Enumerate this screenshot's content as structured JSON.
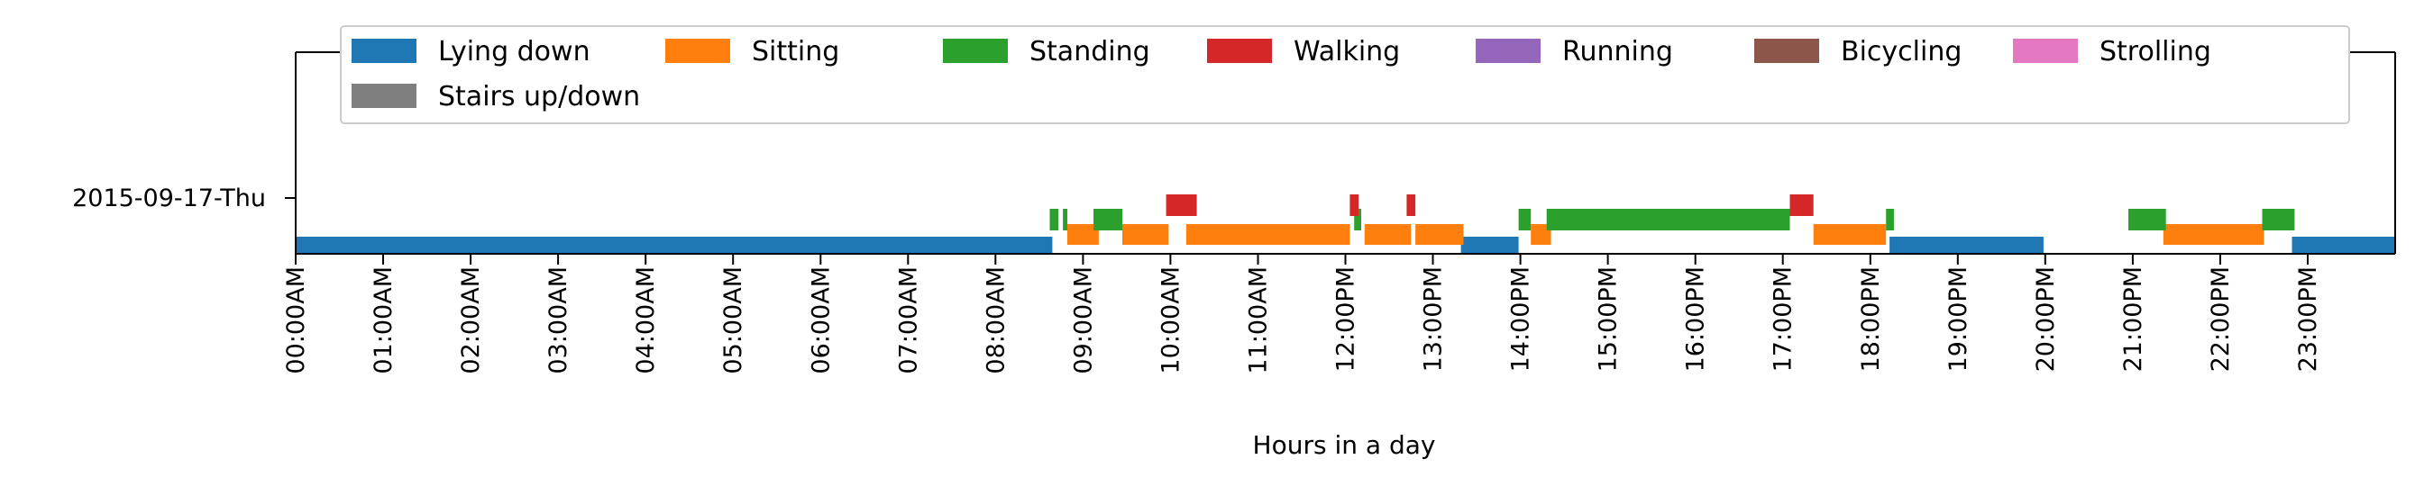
{
  "chart_data": {
    "type": "timeline",
    "xlabel": "Hours in a day",
    "xlim": [
      0,
      24
    ],
    "tick_labels": [
      "00:00AM",
      "01:00AM",
      "02:00AM",
      "03:00AM",
      "04:00AM",
      "05:00AM",
      "06:00AM",
      "07:00AM",
      "08:00AM",
      "09:00AM",
      "10:00AM",
      "11:00AM",
      "12:00PM",
      "13:00PM",
      "14:00PM",
      "15:00PM",
      "16:00PM",
      "17:00PM",
      "18:00PM",
      "19:00PM",
      "20:00PM",
      "21:00PM",
      "22:00PM",
      "23:00PM"
    ],
    "rows": [
      "2015-09-17-Thu"
    ],
    "legend_position": "top-center",
    "series": [
      {
        "name": "Lying down",
        "color": "#1f77b4",
        "intervals": [
          [
            0.0,
            8.65
          ],
          [
            13.32,
            13.98
          ],
          [
            18.22,
            19.98
          ],
          [
            22.82,
            24.0
          ]
        ]
      },
      {
        "name": "Sitting",
        "color": "#ff7f0e",
        "intervals": [
          [
            8.82,
            9.18
          ],
          [
            9.45,
            9.98
          ],
          [
            10.18,
            12.05
          ],
          [
            12.22,
            12.75
          ],
          [
            12.8,
            13.35
          ],
          [
            14.12,
            14.35
          ],
          [
            17.35,
            18.18
          ],
          [
            21.35,
            22.5
          ]
        ]
      },
      {
        "name": "Standing",
        "color": "#2ca02c",
        "intervals": [
          [
            8.62,
            8.72
          ],
          [
            8.77,
            8.82
          ],
          [
            9.12,
            9.45
          ],
          [
            12.1,
            12.18
          ],
          [
            13.98,
            14.12
          ],
          [
            14.3,
            17.08
          ],
          [
            18.18,
            18.27
          ],
          [
            20.95,
            21.38
          ],
          [
            22.48,
            22.85
          ]
        ]
      },
      {
        "name": "Walking",
        "color": "#d62728",
        "intervals": [
          [
            9.95,
            10.3
          ],
          [
            12.05,
            12.15
          ],
          [
            12.7,
            12.8
          ],
          [
            17.08,
            17.35
          ]
        ]
      },
      {
        "name": "Running",
        "color": "#9467bd",
        "intervals": []
      },
      {
        "name": "Bicycling",
        "color": "#8c564b",
        "intervals": []
      },
      {
        "name": "Strolling",
        "color": "#e377c2",
        "intervals": []
      },
      {
        "name": "Stairs up/down",
        "color": "#7f7f7f",
        "intervals": []
      }
    ]
  }
}
